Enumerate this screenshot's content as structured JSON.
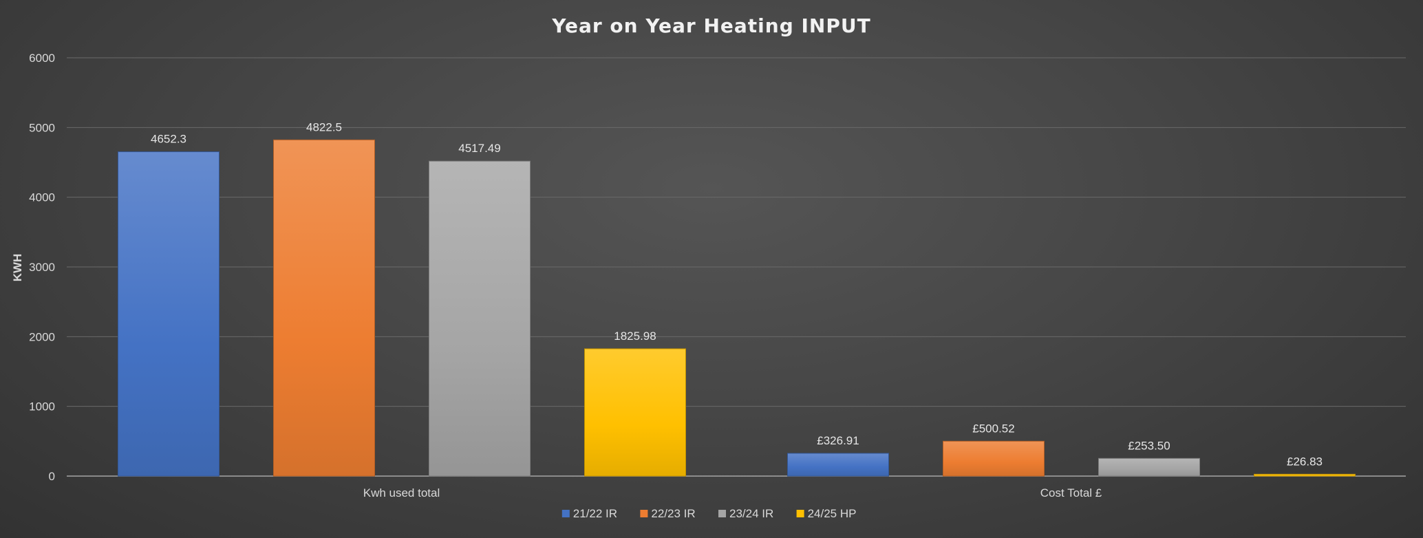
{
  "chart_data": {
    "type": "bar",
    "title": "Year on Year Heating INPUT",
    "xlabel": "",
    "ylabel": "KWH",
    "ylim": [
      0,
      6000
    ],
    "yticks": [
      0,
      1000,
      2000,
      3000,
      4000,
      5000,
      6000
    ],
    "grid": true,
    "legend_position": "bottom",
    "categories": [
      "Kwh used total",
      "Cost Total £"
    ],
    "series": [
      {
        "name": "21/22 IR",
        "color": "#4472c4",
        "values": [
          4652.3,
          326.91
        ],
        "labels": [
          "4652.3",
          "£326.91"
        ]
      },
      {
        "name": "22/23 IR",
        "color": "#ed7d31",
        "values": [
          4822.5,
          500.52
        ],
        "labels": [
          "4822.5",
          "£500.52"
        ]
      },
      {
        "name": "23/24 IR",
        "color": "#a5a5a5",
        "values": [
          4517.49,
          253.5
        ],
        "labels": [
          "4517.49",
          "£253.50"
        ]
      },
      {
        "name": "24/25 HP",
        "color": "#ffc000",
        "values": [
          1825.98,
          26.83
        ],
        "labels": [
          "1825.98",
          "£26.83"
        ]
      }
    ]
  }
}
